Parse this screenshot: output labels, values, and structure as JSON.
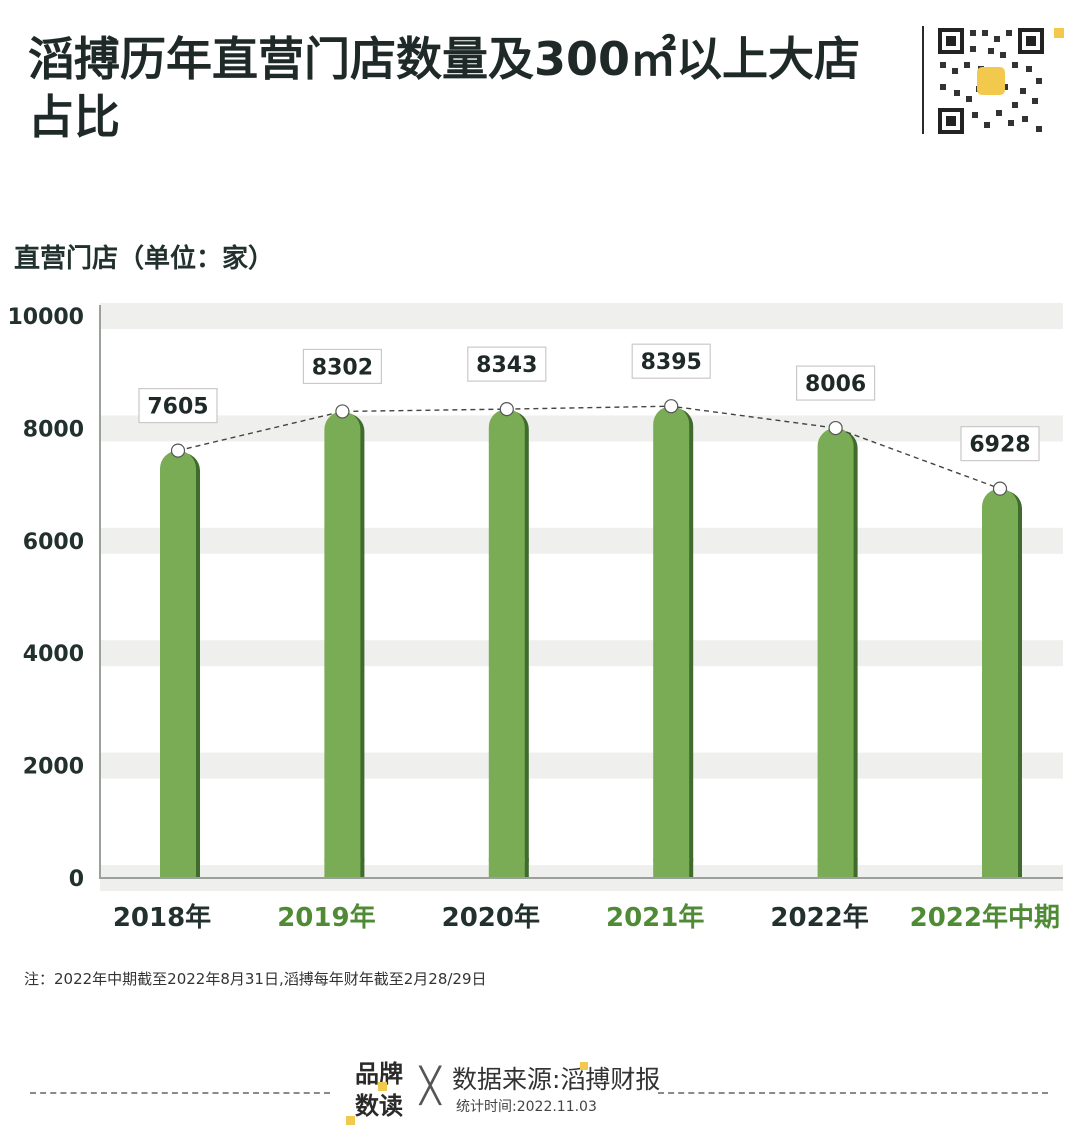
{
  "title": "滔搏历年直营门店数量及300㎡以上大店占比",
  "unit_label": "直营门店（单位：家）",
  "note": "注：2022年中期截至2022年8月31日,滔搏每年财年截至2月28/29日",
  "footer": {
    "brand_line1": "品牌",
    "brand_line2": "数读",
    "source": "数据来源:滔搏财报",
    "stat_time": "统计时间:2022.11.03"
  },
  "colors": {
    "bar": "#7aab55",
    "bar_shade": "#3f6b2c",
    "green_text": "#4f8a34",
    "dark_text": "#22302e",
    "band": "#efefed",
    "accent": "#f2c94c"
  },
  "chart_data": {
    "type": "bar",
    "categories": [
      "2018年",
      "2019年",
      "2020年",
      "2021年",
      "2022年",
      "2022年中期"
    ],
    "values": [
      7605,
      8302,
      8343,
      8395,
      8006,
      6928
    ],
    "ylim": [
      0,
      10000
    ],
    "yticks": [
      0,
      2000,
      4000,
      6000,
      8000,
      10000
    ],
    "ylabel": "直营门店（单位：家）",
    "xlabel": "",
    "trend_line": "dashed",
    "data_labels": true,
    "grid": "horizontal bands",
    "category_label_colors": [
      "#22302e",
      "#4f8a34",
      "#22302e",
      "#4f8a34",
      "#22302e",
      "#4f8a34"
    ]
  }
}
